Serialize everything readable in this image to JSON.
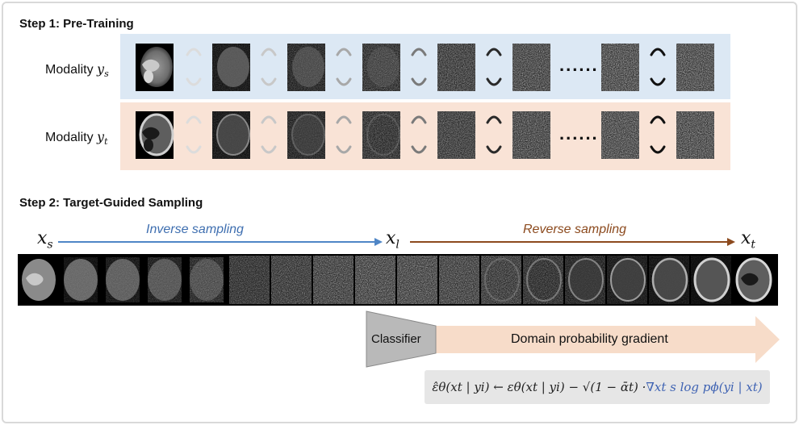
{
  "step1": {
    "title": "Step 1: Pre-Training",
    "modality_prefix": "Modality",
    "modality_source_var": "y",
    "modality_source_sub": "s",
    "modality_target_var": "y",
    "modality_target_sub": "t",
    "ellipsis": "......",
    "colors": {
      "source_band": "#dce8f4",
      "target_band": "#f9e3d6"
    }
  },
  "step2": {
    "title": "Step 2: Target-Guided Sampling",
    "xs_var": "x",
    "xs_sub": "s",
    "xl_var": "x",
    "xl_sub": "l",
    "xt_var": "x",
    "xt_sub": "t",
    "inverse_label": "Inverse sampling",
    "reverse_label": "Reverse sampling",
    "classifier_label": "Classifier",
    "gradient_label": "Domain probability gradient",
    "colors": {
      "inverse": "#4f86c6",
      "reverse": "#8c4a1e",
      "gradient_arrow": "#f7dcc9",
      "classifier": "#b9b9b9"
    }
  },
  "formula": {
    "lhs": "ε̂θ(xt | yi) ← εθ(xt | yi) − √(1 − ᾱt) · ",
    "rhs": "∇xt s log pϕ(yi | xt)"
  }
}
